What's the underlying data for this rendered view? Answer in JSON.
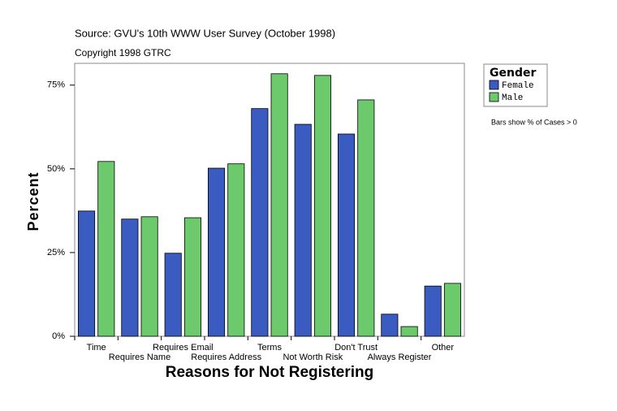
{
  "chart_data": {
    "type": "bar",
    "subtitle": "Source: GVU's 10th WWW User Survey (October 1998)",
    "copyright": "Copyright 1998 GTRC",
    "x_label": "Reasons for Not Registering",
    "y_label": "Percent",
    "legend_title": "Gender",
    "note": "Bars show % of Cases > 0",
    "categories": [
      "Time",
      "Requires Name",
      "Requires Email",
      "Requires Address",
      "Terms",
      "Not Worth Risk",
      "Don't Trust",
      "Always Register",
      "Other"
    ],
    "series": [
      {
        "name": "Female",
        "color": "#3a5bbf",
        "values": [
          37.4,
          35.0,
          24.8,
          50.2,
          68.0,
          63.3,
          60.4,
          6.6,
          15.0
        ]
      },
      {
        "name": "Male",
        "color": "#6cc96c",
        "values": [
          52.2,
          35.7,
          35.4,
          51.5,
          78.4,
          77.9,
          70.6,
          2.9,
          15.8
        ]
      }
    ],
    "ylim": [
      0,
      81.5
    ],
    "yticks": [
      {
        "value": 0,
        "label": "0%"
      },
      {
        "value": 25,
        "label": "25%"
      },
      {
        "value": 50,
        "label": "50%"
      },
      {
        "value": 75,
        "label": "75%"
      }
    ],
    "legend": "right"
  }
}
